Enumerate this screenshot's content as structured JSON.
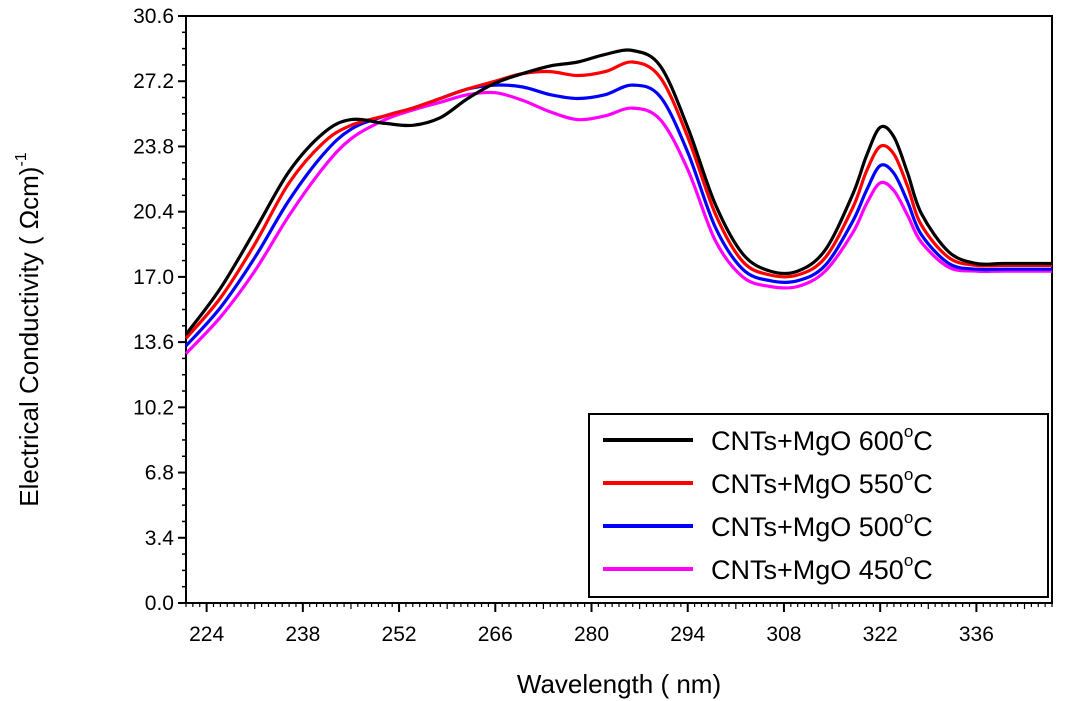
{
  "chart_data": {
    "type": "line",
    "xlabel": "Wavelength ( nm)",
    "ylabel": "Electrical Conductivity ( Ωcm)",
    "ylabel_sup": "-1",
    "xlim": [
      221,
      347
    ],
    "ylim": [
      0,
      30.6
    ],
    "xticks": [
      224,
      238,
      252,
      266,
      280,
      294,
      308,
      322,
      336
    ],
    "yticks": [
      "0.0",
      "3.4",
      "6.8",
      "10.2",
      "13.6",
      "17.0",
      "20.4",
      "23.8",
      "27.2",
      "30.6"
    ],
    "legend_position": "bottom-right",
    "series": [
      {
        "name": "CNTs+MgO 600",
        "unit": "C",
        "unit_sup": "o",
        "color": "#000000",
        "x": [
          221,
          226,
          231,
          236,
          241,
          245,
          250,
          254,
          258,
          262,
          266,
          270,
          274,
          278,
          282,
          286,
          290,
          294,
          298,
          302,
          306,
          310,
          314,
          318,
          320,
          322,
          324,
          326,
          328,
          332,
          336,
          340,
          347
        ],
        "y": [
          14.0,
          16.4,
          19.4,
          22.5,
          24.5,
          25.2,
          25.0,
          24.9,
          25.3,
          26.3,
          27.1,
          27.6,
          28.0,
          28.2,
          28.6,
          28.8,
          28.0,
          24.8,
          20.8,
          18.2,
          17.3,
          17.3,
          18.4,
          21.3,
          23.3,
          24.8,
          24.3,
          22.4,
          20.3,
          18.3,
          17.7,
          17.7,
          17.7
        ]
      },
      {
        "name": "CNTs+MgO 550",
        "unit": "C",
        "unit_sup": "o",
        "color": "#ff0000",
        "x": [
          221,
          226,
          231,
          236,
          241,
          245,
          250,
          254,
          258,
          262,
          266,
          270,
          274,
          278,
          282,
          286,
          290,
          294,
          298,
          302,
          306,
          310,
          314,
          318,
          320,
          322,
          324,
          326,
          328,
          332,
          336,
          340,
          347
        ],
        "y": [
          13.8,
          15.9,
          18.7,
          21.9,
          24.0,
          24.9,
          25.4,
          25.8,
          26.3,
          26.8,
          27.2,
          27.6,
          27.7,
          27.5,
          27.7,
          28.2,
          27.4,
          24.3,
          20.3,
          17.8,
          17.1,
          17.1,
          18.0,
          20.6,
          22.5,
          23.8,
          23.4,
          21.7,
          19.7,
          18.0,
          17.6,
          17.6,
          17.6
        ]
      },
      {
        "name": "CNTs+MgO 500",
        "unit": "C",
        "unit_sup": "o",
        "color": "#0000ff",
        "x": [
          221,
          226,
          231,
          236,
          241,
          245,
          250,
          254,
          258,
          262,
          266,
          270,
          274,
          278,
          282,
          286,
          290,
          294,
          298,
          302,
          306,
          310,
          314,
          318,
          320,
          322,
          324,
          326,
          328,
          332,
          336,
          340,
          347
        ],
        "y": [
          13.4,
          15.4,
          18.0,
          21.0,
          23.4,
          24.7,
          25.4,
          25.8,
          26.3,
          26.8,
          27.0,
          26.9,
          26.5,
          26.3,
          26.5,
          27.0,
          26.4,
          23.5,
          19.6,
          17.4,
          16.8,
          16.8,
          17.6,
          19.9,
          21.5,
          22.8,
          22.4,
          20.9,
          19.2,
          17.7,
          17.4,
          17.4,
          17.4
        ]
      },
      {
        "name": "CNTs+MgO 450",
        "unit": "C",
        "unit_sup": "o",
        "color": "#ff00ff",
        "x": [
          221,
          226,
          231,
          236,
          241,
          245,
          250,
          254,
          258,
          262,
          266,
          270,
          274,
          278,
          282,
          286,
          290,
          294,
          298,
          302,
          306,
          310,
          314,
          318,
          320,
          322,
          324,
          326,
          328,
          332,
          336,
          340,
          347
        ],
        "y": [
          13.0,
          14.9,
          17.3,
          20.2,
          22.7,
          24.2,
          25.2,
          25.7,
          26.1,
          26.5,
          26.6,
          26.2,
          25.6,
          25.2,
          25.4,
          25.8,
          25.2,
          22.6,
          18.9,
          17.0,
          16.5,
          16.5,
          17.3,
          19.3,
          20.8,
          21.9,
          21.5,
          20.2,
          18.8,
          17.5,
          17.3,
          17.3,
          17.3
        ]
      }
    ]
  }
}
